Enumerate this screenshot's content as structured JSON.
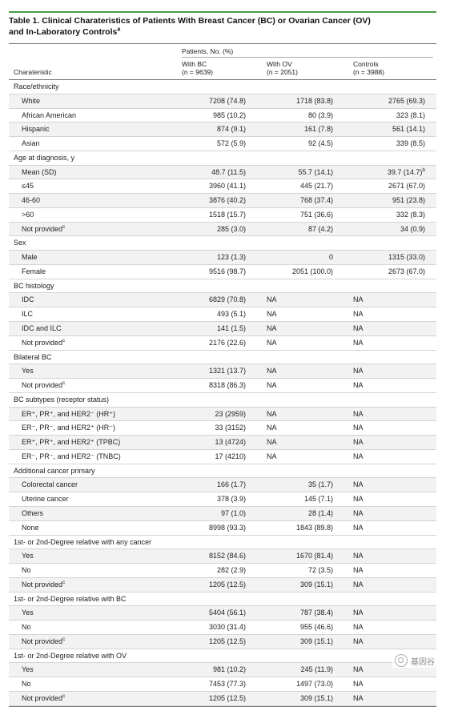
{
  "title": {
    "line1": "Table 1. Clinical Charateristics of Patients With Breast Cancer (BC) or Ovarian Cancer (OV)",
    "line2": "and In-Laboratory Controls",
    "line2_sup": "a"
  },
  "header": {
    "span_label": "Patients, No. (%)",
    "characteristic": "Charateristic",
    "col1_name": "With BC",
    "col1_n": "(n = 9639)",
    "col2_name": "With OV",
    "col2_n": "(n = 2051)",
    "col3_name": "Controls",
    "col3_n": "(n = 3988)"
  },
  "rows": [
    {
      "label": "Race/ethnicity",
      "section": true
    },
    {
      "label": "White",
      "c1": "7208 (74.8)",
      "c2": "1718 (83.8)",
      "c3": "2765 (69.3)"
    },
    {
      "label": "African American",
      "c1": "985 (10.2)",
      "c2": "80 (3.9)",
      "c3": "323 (8.1)"
    },
    {
      "label": "Hispanic",
      "c1": "874 (9.1)",
      "c2": "161 (7.8)",
      "c3": "561 (14.1)"
    },
    {
      "label": "Asian",
      "c1": "572 (5.9)",
      "c2": "92 (4.5)",
      "c3": "339 (8.5)"
    },
    {
      "label": "Age at diagnosis, y",
      "section": true
    },
    {
      "label": "Mean (SD)",
      "c1": "48.7 (11.5)",
      "c2": "55.7 (14.1)",
      "c3": "39.7 (14.7)",
      "c3_sup": "b"
    },
    {
      "label": "≤45",
      "c1": "3960 (41.1)",
      "c2": "445 (21.7)",
      "c3": "2671 (67.0)"
    },
    {
      "label": "46-60",
      "c1": "3876 (40.2)",
      "c2": "768 (37.4)",
      "c3": "951 (23.8)"
    },
    {
      "label": ">60",
      "c1": "1518 (15.7)",
      "c2": "751 (36.6)",
      "c3": "332 (8.3)"
    },
    {
      "label": "Not provided",
      "label_sup": "c",
      "c1": "285 (3.0)",
      "c2": "87 (4.2)",
      "c3": "34 (0.9)"
    },
    {
      "label": "Sex",
      "section": true
    },
    {
      "label": "Male",
      "c1": "123 (1.3)",
      "c2": "0",
      "c3": "1315 (33.0)"
    },
    {
      "label": "Female",
      "c1": "9516 (98.7)",
      "c2": "2051 (100.0)",
      "c3": "2673 (67.0)"
    },
    {
      "label": "BC histology",
      "section": true
    },
    {
      "label": "IDC",
      "c1": "6829 (70.8)",
      "c2": "NA",
      "c3": "NA",
      "na": true
    },
    {
      "label": "ILC",
      "c1": "493 (5.1)",
      "c2": "NA",
      "c3": "NA",
      "na": true
    },
    {
      "label": "IDC and ILC",
      "c1": "141 (1.5)",
      "c2": "NA",
      "c3": "NA",
      "na": true
    },
    {
      "label": "Not provided",
      "label_sup": "c",
      "c1": "2176 (22.6)",
      "c2": "NA",
      "c3": "NA",
      "na": true
    },
    {
      "label": "Bilateral BC",
      "section": true
    },
    {
      "label": "Yes",
      "c1": "1321 (13.7)",
      "c2": "NA",
      "c3": "NA",
      "na": true
    },
    {
      "label": "Not provided",
      "label_sup": "c",
      "c1": "8318 (86.3)",
      "c2": "NA",
      "c3": "NA",
      "na": true
    },
    {
      "label": "BC subtypes (receptor status)",
      "section": true
    },
    {
      "label": "ER⁺, PR⁺, and HER2⁻ (HR⁺)",
      "c1": "23 (2959)",
      "c2": "NA",
      "c3": "NA",
      "na": true
    },
    {
      "label": "ER⁻, PR⁻, and HER2⁺ (HR⁻)",
      "c1": "33 (3152)",
      "c2": "NA",
      "c3": "NA",
      "na": true
    },
    {
      "label": "ER⁺, PR⁺, and HER2⁺ (TPBC)",
      "c1": "13 (4724)",
      "c2": "NA",
      "c3": "NA",
      "na": true
    },
    {
      "label": "ER⁻, PR⁻, and HER2⁻ (TNBC)",
      "c1": "17 (4210)",
      "c2": "NA",
      "c3": "NA",
      "na": true
    },
    {
      "label": "Additional cancer primary",
      "section": true
    },
    {
      "label": "Colorectal cancer",
      "c1": "166 (1.7)",
      "c2": "35 (1.7)",
      "c3": "NA",
      "na3": true
    },
    {
      "label": "Uterine cancer",
      "c1": "378 (3.9)",
      "c2": "145 (7.1)",
      "c3": "NA",
      "na3": true
    },
    {
      "label": "Others",
      "c1": "97 (1.0)",
      "c2": "28 (1.4)",
      "c3": "NA",
      "na3": true
    },
    {
      "label": "None",
      "c1": "8998 (93.3)",
      "c2": "1843 (89.8)",
      "c3": "NA",
      "na3": true
    },
    {
      "label": "1st- or 2nd-Degree relative with any cancer",
      "section": true
    },
    {
      "label": "Yes",
      "c1": "8152 (84.6)",
      "c2": "1670 (81.4)",
      "c3": "NA",
      "na3": true
    },
    {
      "label": "No",
      "c1": "282 (2.9)",
      "c2": "72 (3.5)",
      "c3": "NA",
      "na3": true
    },
    {
      "label": "Not provided",
      "label_sup": "c",
      "c1": "1205 (12.5)",
      "c2": "309 (15.1)",
      "c3": "NA",
      "na3": true
    },
    {
      "label": "1st- or 2nd-Degree relative with BC",
      "section": true
    },
    {
      "label": "Yes",
      "c1": "5404 (56.1)",
      "c2": "787 (38.4)",
      "c3": "NA",
      "na3": true
    },
    {
      "label": "No",
      "c1": "3030 (31.4)",
      "c2": "955 (46.6)",
      "c3": "NA",
      "na3": true
    },
    {
      "label": "Not provided",
      "label_sup": "c",
      "c1": "1205 (12.5)",
      "c2": "309 (15.1)",
      "c3": "NA",
      "na3": true
    },
    {
      "label": "1st- or 2nd-Degree relative with OV",
      "section": true
    },
    {
      "label": "Yes",
      "c1": "981 (10.2)",
      "c2": "245 (11.9)",
      "c3": "NA",
      "na3": true
    },
    {
      "label": "No",
      "c1": "7453 (77.3)",
      "c2": "1497 (73.0)",
      "c3": "NA",
      "na3": true
    },
    {
      "label": "Not provided",
      "label_sup": "c",
      "c1": "1205 (12.5)",
      "c2": "309 (15.1)",
      "c3": "NA",
      "na3": true
    }
  ],
  "watermark": {
    "text": "基因谷",
    "icon": "wechat-icon"
  },
  "colors": {
    "accent_rule": "#4a9a4a",
    "alt_row": "#f2f2f2"
  }
}
